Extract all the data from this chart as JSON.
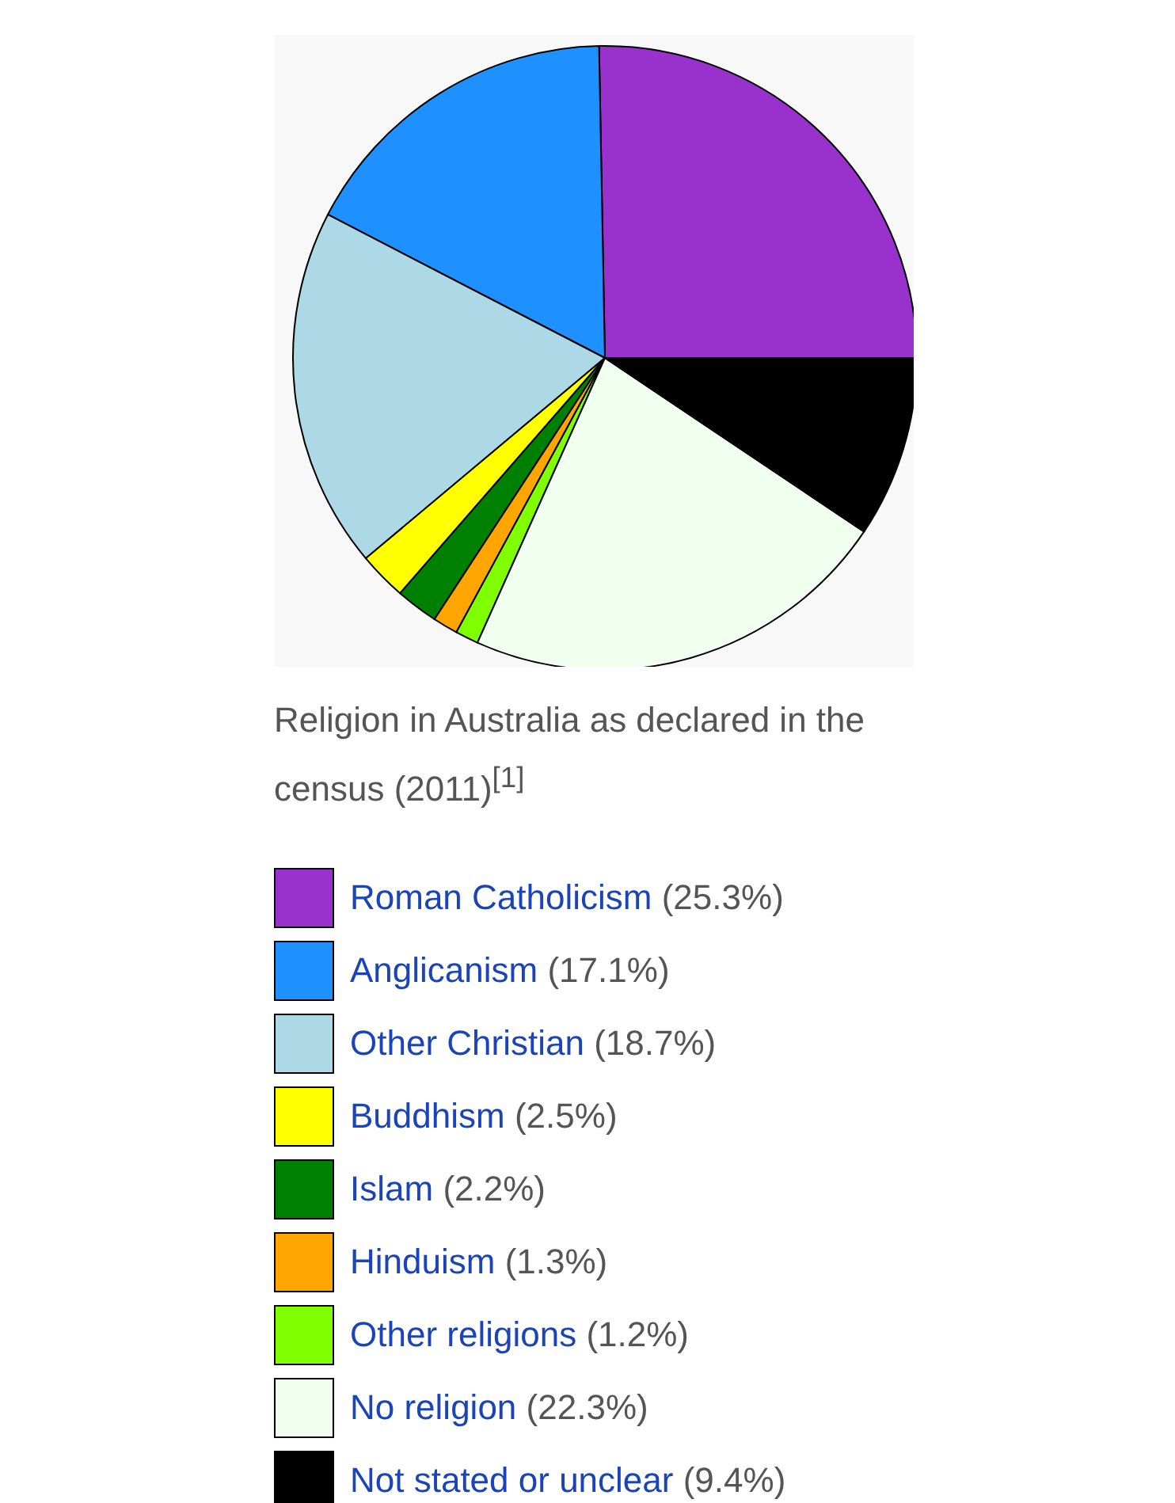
{
  "chart_data": {
    "type": "pie",
    "title": "Religion in Australia as declared in the census (2011)$^{[1]}$",
    "categories": [
      "Roman Catholicism",
      "Anglicanism",
      "Other Christian",
      "Buddhism",
      "Islam",
      "Hinduism",
      "Other religions",
      "No religion",
      "Not stated or unclear"
    ],
    "values": [
      25.3,
      17.1,
      18.7,
      2.5,
      2.2,
      1.3,
      1.2,
      22.3,
      9.4
    ],
    "value_labels": [
      "(25.3%)",
      "(17.1%)",
      "(18.7%)",
      "(2.5%)",
      "(2.2%)",
      "(1.3%)",
      "(1.2%)",
      "(22.3%)",
      "(9.4%)"
    ],
    "colors": [
      "#9932cc",
      "#1e90ff",
      "#add8e6",
      "#ffff00",
      "#008000",
      "#ffa500",
      "#7fff00",
      "#f0fff0",
      "#000000"
    ],
    "legend": "bottom"
  }
}
